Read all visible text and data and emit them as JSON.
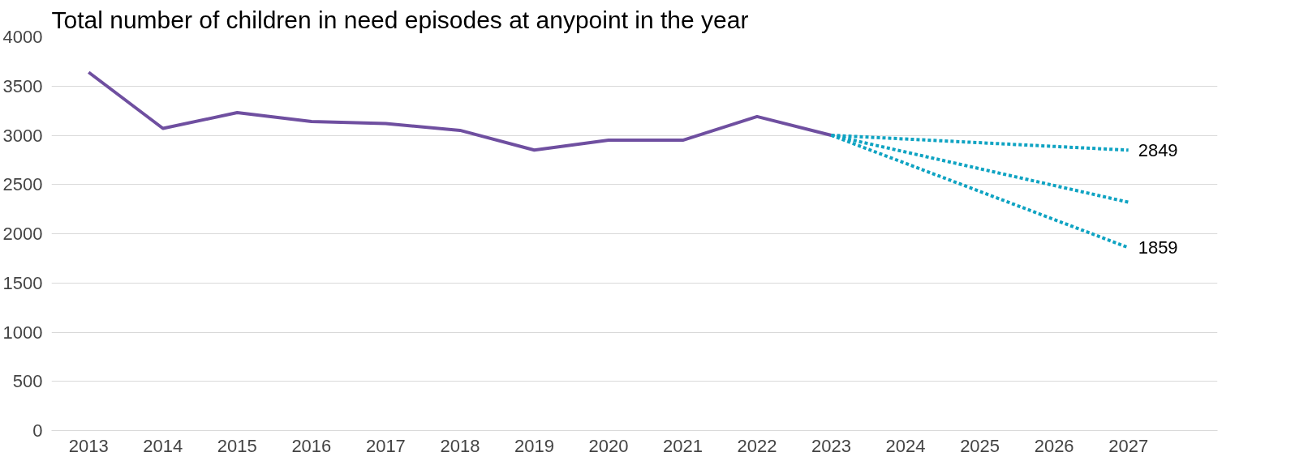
{
  "chart_data": {
    "type": "line",
    "title": "Total number of children in need episodes at anypoint in the year",
    "x": [
      2013,
      2014,
      2015,
      2016,
      2017,
      2018,
      2019,
      2020,
      2021,
      2022,
      2023,
      2024,
      2025,
      2026,
      2027
    ],
    "xlim": [
      2012.5,
      2028.2
    ],
    "xticks": [
      2013,
      2014,
      2015,
      2016,
      2017,
      2018,
      2019,
      2020,
      2021,
      2022,
      2023,
      2024,
      2025,
      2026,
      2027
    ],
    "ylim": [
      0,
      4000
    ],
    "yticks": [
      0,
      500,
      1000,
      1500,
      2000,
      2500,
      3000,
      3500,
      4000
    ],
    "grid": "y",
    "series": [
      {
        "color": "#6f4fa0",
        "line_style": "solid",
        "values": [
          3640,
          3070,
          3230,
          3140,
          3120,
          3050,
          2850,
          2950,
          2950,
          3190,
          3000,
          null,
          null,
          null,
          null
        ]
      },
      {
        "color": "#0fa3c2",
        "line_style": "dotted",
        "values": [
          null,
          null,
          null,
          null,
          null,
          null,
          null,
          null,
          null,
          null,
          3000,
          null,
          null,
          null,
          2849
        ],
        "value_labels": [
          null,
          null,
          null,
          null,
          null,
          null,
          null,
          null,
          null,
          null,
          null,
          null,
          null,
          null,
          "2849"
        ]
      },
      {
        "color": "#0fa3c2",
        "line_style": "dotted",
        "values": [
          null,
          null,
          null,
          null,
          null,
          null,
          null,
          null,
          null,
          null,
          3000,
          null,
          null,
          null,
          2320
        ]
      },
      {
        "color": "#0fa3c2",
        "line_style": "dotted",
        "values": [
          null,
          null,
          null,
          null,
          null,
          null,
          null,
          null,
          null,
          null,
          3000,
          null,
          null,
          null,
          1859
        ],
        "value_labels": [
          null,
          null,
          null,
          null,
          null,
          null,
          null,
          null,
          null,
          null,
          null,
          null,
          null,
          null,
          "1859"
        ]
      }
    ]
  }
}
